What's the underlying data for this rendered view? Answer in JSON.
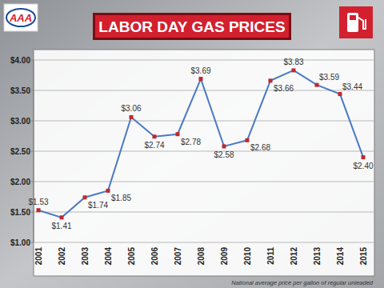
{
  "chart_data": {
    "type": "line",
    "title": "LABOR DAY GAS PRICES",
    "annotations": [
      "AAA",
      "National average price per gallon of regular unleaded"
    ],
    "categories": [
      "2001",
      "2002",
      "2003",
      "2004",
      "2005",
      "2006",
      "2007",
      "2008",
      "2009",
      "2010",
      "2011",
      "2012",
      "2013",
      "2014",
      "2015"
    ],
    "values": [
      1.53,
      1.41,
      1.74,
      1.85,
      3.06,
      2.74,
      2.78,
      3.69,
      2.58,
      2.68,
      3.66,
      3.83,
      3.59,
      3.44,
      2.4
    ],
    "value_labels": [
      "$1.53",
      "$1.41",
      "$1.74",
      "$1.85",
      "$3.06",
      "$2.74",
      "$2.78",
      "$3.69",
      "$2.58",
      "$2.68",
      "$3.66",
      "$3.83",
      "$3.59",
      "$3.44",
      "$2.40"
    ],
    "color": "#4a7bc4",
    "marker": "square",
    "line_style": "solid",
    "ylim": [
      1,
      4
    ],
    "yticks": [
      {
        "value": 1,
        "label": "$1.00"
      },
      {
        "value": 1.5,
        "label": "$1.50"
      },
      {
        "value": 2,
        "label": "$2.00"
      },
      {
        "value": 2.5,
        "label": "$2.50"
      },
      {
        "value": 3,
        "label": "$3.00"
      },
      {
        "value": 3.5,
        "label": "$3.50"
      },
      {
        "value": 4,
        "label": "$4.00"
      }
    ],
    "grid": true,
    "data_labels": true
  }
}
